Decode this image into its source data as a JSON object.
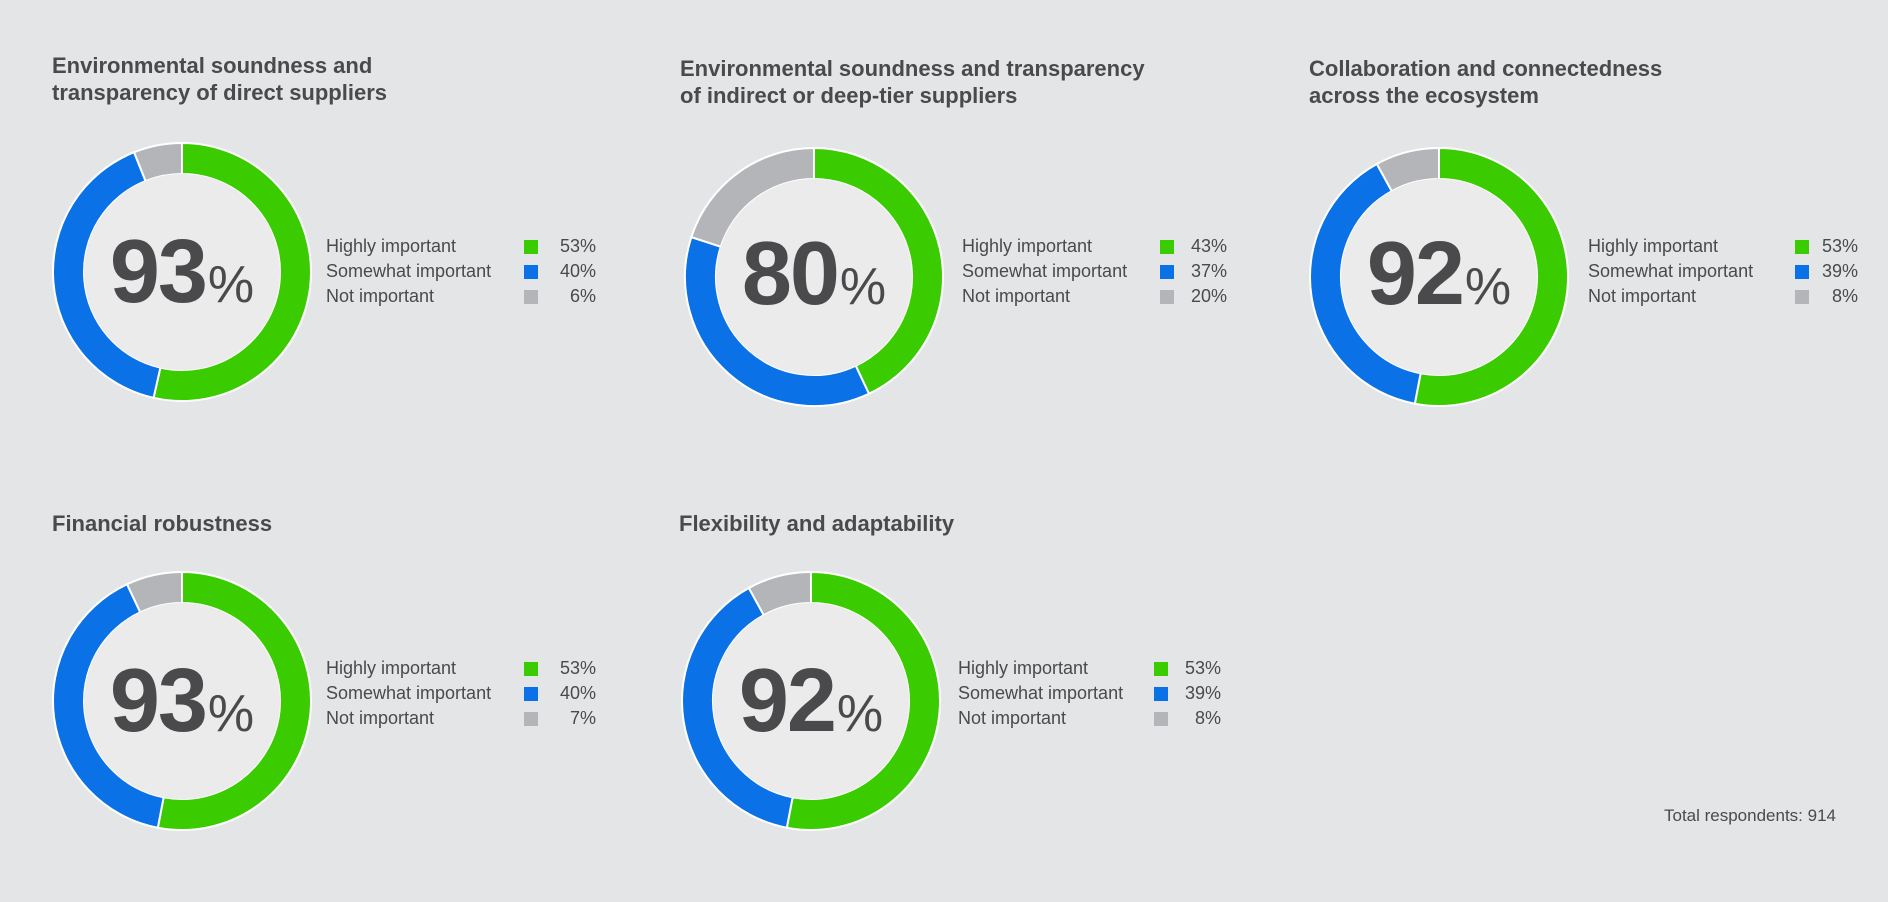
{
  "colors": {
    "highly": "#3acc00",
    "somewhat": "#0a72e6",
    "not": "#b4b5b8",
    "inner": "#ebebeb",
    "text": "#4a4a4c"
  },
  "chart_data": [
    {
      "type": "pie",
      "title_line1": "Environmental soundness and",
      "title_line2": "transparency of direct suppliers",
      "center_value": "93",
      "center_unit": "%",
      "categories": [
        "Highly important",
        "Somewhat important",
        "Not important"
      ],
      "values": [
        53,
        40,
        6
      ],
      "value_labels": [
        "53%",
        "40%",
        "6%"
      ]
    },
    {
      "type": "pie",
      "title_line1": "Environmental soundness and transparency",
      "title_line2": "of indirect or deep-tier suppliers",
      "center_value": "80",
      "center_unit": "%",
      "categories": [
        "Highly important",
        "Somewhat important",
        "Not important"
      ],
      "values": [
        43,
        37,
        20
      ],
      "value_labels": [
        "43%",
        "37%",
        "20%"
      ]
    },
    {
      "type": "pie",
      "title_line1": "Collaboration and connectedness",
      "title_line2": "across the ecosystem",
      "center_value": "92",
      "center_unit": "%",
      "categories": [
        "Highly important",
        "Somewhat important",
        "Not important"
      ],
      "values": [
        53,
        39,
        8
      ],
      "value_labels": [
        "53%",
        "39%",
        "8%"
      ]
    },
    {
      "type": "pie",
      "title_line1": "Financial robustness",
      "title_line2": "",
      "center_value": "93",
      "center_unit": "%",
      "categories": [
        "Highly important",
        "Somewhat important",
        "Not important"
      ],
      "values": [
        53,
        40,
        7
      ],
      "value_labels": [
        "53%",
        "40%",
        "7%"
      ]
    },
    {
      "type": "pie",
      "title_line1": "Flexibility and adaptability",
      "title_line2": "",
      "center_value": "92",
      "center_unit": "%",
      "categories": [
        "Highly important",
        "Somewhat important",
        "Not important"
      ],
      "values": [
        53,
        39,
        8
      ],
      "value_labels": [
        "53%",
        "39%",
        "8%"
      ]
    }
  ],
  "footnote": "Total respondents: 914"
}
